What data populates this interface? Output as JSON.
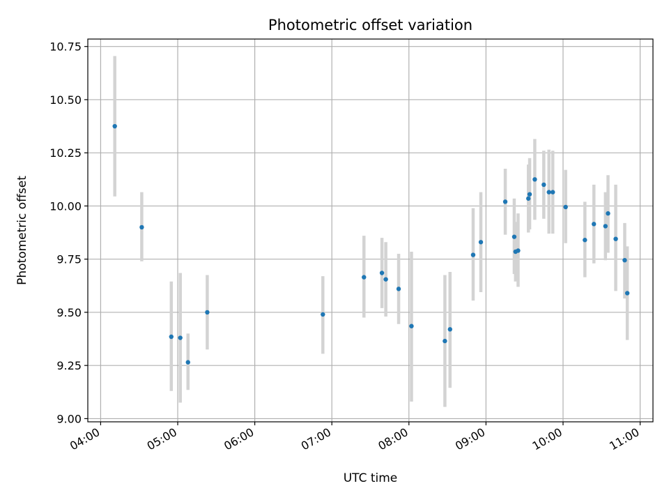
{
  "chart_data": {
    "type": "scatter",
    "title": "Photometric offset variation",
    "xlabel": "UTC time",
    "ylabel": "Photometric offset",
    "x_unit": "time of day (HH:MM, UTC)",
    "xlim": [
      "03:50",
      "11:10"
    ],
    "ylim": [
      8.985,
      10.785
    ],
    "x_ticks": [
      "04:00",
      "05:00",
      "06:00",
      "07:00",
      "08:00",
      "09:00",
      "10:00",
      "11:00"
    ],
    "y_ticks": [
      9.0,
      9.25,
      9.5,
      9.75,
      10.0,
      10.25,
      10.5,
      10.75
    ],
    "y_tick_labels": [
      "9.00",
      "9.25",
      "9.50",
      "9.75",
      "10.00",
      "10.25",
      "10.50",
      "10.75"
    ],
    "grid": true,
    "marker_color": "#1f77b4",
    "errorbar_color": "#d3d3d3",
    "series": [
      {
        "points": [
          {
            "t": "04:11",
            "y": 10.375,
            "lo": 10.045,
            "hi": 10.705
          },
          {
            "t": "04:32",
            "y": 9.9,
            "lo": 9.74,
            "hi": 10.065
          },
          {
            "t": "04:55",
            "y": 9.385,
            "lo": 9.13,
            "hi": 9.645
          },
          {
            "t": "05:02",
            "y": 9.38,
            "lo": 9.075,
            "hi": 9.685
          },
          {
            "t": "05:08",
            "y": 9.265,
            "lo": 9.135,
            "hi": 9.4
          },
          {
            "t": "05:23",
            "y": 9.5,
            "lo": 9.325,
            "hi": 9.675
          },
          {
            "t": "06:53",
            "y": 9.49,
            "lo": 9.305,
            "hi": 9.67
          },
          {
            "t": "07:25",
            "y": 9.665,
            "lo": 9.475,
            "hi": 9.86
          },
          {
            "t": "07:39",
            "y": 9.685,
            "lo": 9.52,
            "hi": 9.85
          },
          {
            "t": "07:42",
            "y": 9.655,
            "lo": 9.48,
            "hi": 9.83
          },
          {
            "t": "07:52",
            "y": 9.61,
            "lo": 9.445,
            "hi": 9.775
          },
          {
            "t": "08:02",
            "y": 9.435,
            "lo": 9.08,
            "hi": 9.785
          },
          {
            "t": "08:28",
            "y": 9.365,
            "lo": 9.055,
            "hi": 9.675
          },
          {
            "t": "08:32",
            "y": 9.42,
            "lo": 9.145,
            "hi": 9.69
          },
          {
            "t": "08:50",
            "y": 9.77,
            "lo": 9.555,
            "hi": 9.99
          },
          {
            "t": "08:56",
            "y": 9.83,
            "lo": 9.595,
            "hi": 10.065
          },
          {
            "t": "09:15",
            "y": 10.02,
            "lo": 9.865,
            "hi": 10.175
          },
          {
            "t": "09:22",
            "y": 9.855,
            "lo": 9.68,
            "hi": 10.035
          },
          {
            "t": "09:23",
            "y": 9.785,
            "lo": 9.645,
            "hi": 9.925
          },
          {
            "t": "09:25",
            "y": 9.79,
            "lo": 9.62,
            "hi": 9.965
          },
          {
            "t": "09:33",
            "y": 10.035,
            "lo": 9.875,
            "hi": 10.195
          },
          {
            "t": "09:34",
            "y": 10.055,
            "lo": 9.89,
            "hi": 10.225
          },
          {
            "t": "09:38",
            "y": 10.125,
            "lo": 9.935,
            "hi": 10.315
          },
          {
            "t": "09:45",
            "y": 10.1,
            "lo": 9.94,
            "hi": 10.26
          },
          {
            "t": "09:49",
            "y": 10.065,
            "lo": 9.87,
            "hi": 10.265
          },
          {
            "t": "09:52",
            "y": 10.065,
            "lo": 9.87,
            "hi": 10.26
          },
          {
            "t": "10:02",
            "y": 9.995,
            "lo": 9.825,
            "hi": 10.17
          },
          {
            "t": "10:17",
            "y": 9.84,
            "lo": 9.665,
            "hi": 10.02
          },
          {
            "t": "10:24",
            "y": 9.915,
            "lo": 9.73,
            "hi": 10.1
          },
          {
            "t": "10:33",
            "y": 9.905,
            "lo": 9.745,
            "hi": 10.065
          },
          {
            "t": "10:35",
            "y": 9.965,
            "lo": 9.78,
            "hi": 10.145
          },
          {
            "t": "10:41",
            "y": 9.845,
            "lo": 9.6,
            "hi": 10.1
          },
          {
            "t": "10:48",
            "y": 9.745,
            "lo": 9.565,
            "hi": 9.92
          },
          {
            "t": "10:50",
            "y": 9.59,
            "lo": 9.37,
            "hi": 9.81
          }
        ]
      }
    ]
  }
}
